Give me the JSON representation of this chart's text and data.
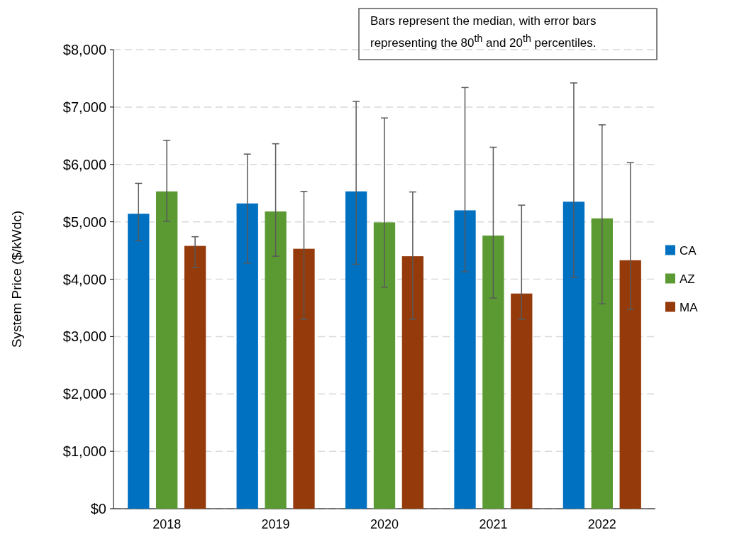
{
  "chart_data": {
    "type": "bar",
    "ylabel": "System Price ($/kWdc)",
    "categories": [
      "2018",
      "2019",
      "2020",
      "2021",
      "2022"
    ],
    "series": [
      {
        "name": "CA",
        "color": "#0070c0",
        "values": [
          5140,
          5320,
          5530,
          5200,
          5350
        ],
        "errors": [
          [
            4670,
            5670
          ],
          [
            4280,
            6180
          ],
          [
            4260,
            7100
          ],
          [
            4130,
            7340
          ],
          [
            4030,
            7420
          ]
        ]
      },
      {
        "name": "AZ",
        "color": "#5b9a32",
        "values": [
          5530,
          5180,
          4990,
          4760,
          5060
        ],
        "errors": [
          [
            5010,
            6420
          ],
          [
            4400,
            6360
          ],
          [
            3860,
            6810
          ],
          [
            3670,
            6300
          ],
          [
            3570,
            6690
          ]
        ]
      },
      {
        "name": "MA",
        "color": "#953b0b",
        "values": [
          4580,
          4530,
          4400,
          3750,
          4330
        ],
        "errors": [
          [
            4200,
            4740
          ],
          [
            3300,
            5530
          ],
          [
            3300,
            5520
          ],
          [
            3300,
            5290
          ],
          [
            3470,
            6030
          ]
        ]
      }
    ],
    "ylim": [
      0,
      8000
    ],
    "yticks": [
      {
        "value": 0,
        "label": "$0"
      },
      {
        "value": 1000,
        "label": "$1,000"
      },
      {
        "value": 2000,
        "label": "$2,000"
      },
      {
        "value": 3000,
        "label": "$3,000"
      },
      {
        "value": 4000,
        "label": "$4,000"
      },
      {
        "value": 5000,
        "label": "$5,000"
      },
      {
        "value": 6000,
        "label": "$6,000"
      },
      {
        "value": 7000,
        "label": "$7,000"
      },
      {
        "value": 8000,
        "label": "$8,000"
      }
    ],
    "grid": "y",
    "legend": "right",
    "annotations": [
      "Bars represent the median, with error bars representing the 80$^{th}$ and 20$^{th}$ percentiles."
    ]
  }
}
